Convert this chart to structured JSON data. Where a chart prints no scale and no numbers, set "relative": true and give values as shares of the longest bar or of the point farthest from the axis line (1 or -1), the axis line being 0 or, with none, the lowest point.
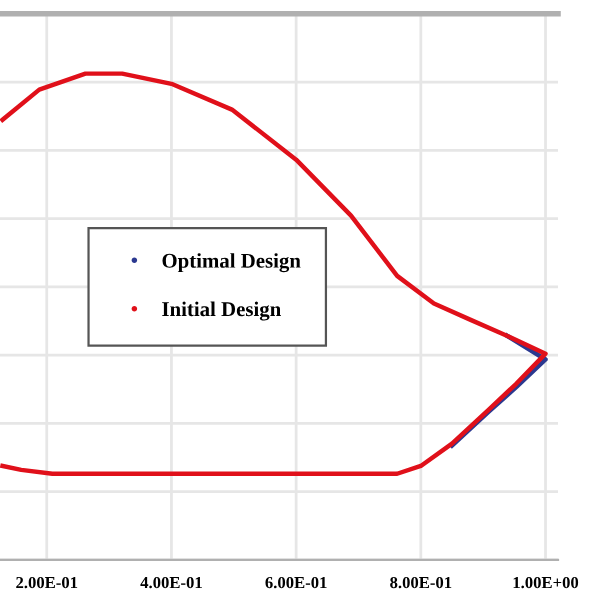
{
  "chart_data": {
    "type": "line",
    "relative": true,
    "xlim": [
      0.125,
      1.02
    ],
    "xticks": [
      {
        "value": 0.2,
        "label": "2.00E-01"
      },
      {
        "value": 0.4,
        "label": "4.00E-01"
      },
      {
        "value": 0.6,
        "label": "6.00E-01"
      },
      {
        "value": 0.8,
        "label": "8.00E-01"
      },
      {
        "value": 1.0,
        "label": "1.00E+00"
      }
    ],
    "grid": true,
    "legend": "center",
    "series": [
      {
        "name": "Optimal Design",
        "color": "#2b3990",
        "x": [
          0.938,
          1.0,
          0.953,
          0.909,
          0.85
        ],
        "values": [
          0.461,
          0.412,
          0.355,
          0.305,
          0.235
        ]
      },
      {
        "name": "Initial Design",
        "color": "#e0101a",
        "x": [
          0.129,
          0.188,
          0.262,
          0.321,
          0.4,
          0.497,
          0.6,
          0.688,
          0.762,
          0.821,
          0.879,
          0.938,
          1.0,
          0.953,
          0.909,
          0.85,
          0.8,
          0.762,
          0.6,
          0.4,
          0.209,
          0.159,
          0.129
        ],
        "values": [
          0.905,
          0.967,
          1.0,
          1.0,
          0.979,
          0.926,
          0.823,
          0.708,
          0.584,
          0.527,
          0.494,
          0.461,
          0.424,
          0.362,
          0.309,
          0.239,
          0.193,
          0.177,
          0.177,
          0.177,
          0.177,
          0.185,
          0.193
        ]
      }
    ]
  }
}
